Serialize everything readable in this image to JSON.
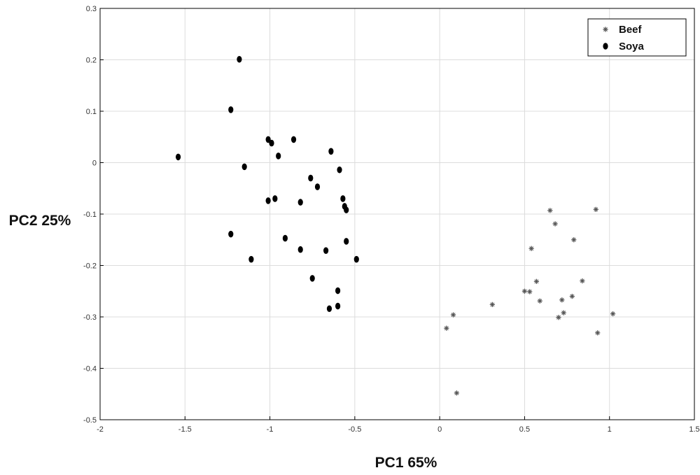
{
  "chart_data": {
    "type": "scatter",
    "title": "",
    "xlabel": "PC1 65%",
    "ylabel": "PC2 25%",
    "xlim": [
      -2,
      1.5
    ],
    "ylim": [
      -0.5,
      0.3
    ],
    "x_ticks": [
      -2,
      -1.5,
      -1,
      -0.5,
      0,
      0.5,
      1,
      1.5
    ],
    "x_tick_labels": [
      "-2",
      "-1.5",
      "-1",
      "-0.5",
      "0",
      "0.5",
      "1",
      "1.5"
    ],
    "y_ticks": [
      0.3,
      0.2,
      0.1,
      0,
      -0.1,
      -0.2,
      -0.3,
      -0.4,
      -0.5
    ],
    "y_tick_labels": [
      "0.3",
      "0.2",
      "0.1",
      "0",
      "-0.1",
      "-0.2",
      "-0.3",
      "-0.4",
      "-0.5"
    ],
    "grid": true,
    "legend_position": "top-right",
    "series": [
      {
        "name": "Beef",
        "marker": "asterisk",
        "color": "#555555",
        "points": [
          [
            0.04,
            -0.322
          ],
          [
            0.08,
            -0.296
          ],
          [
            0.1,
            -0.448
          ],
          [
            0.31,
            -0.276
          ],
          [
            0.5,
            -0.25
          ],
          [
            0.53,
            -0.251
          ],
          [
            0.54,
            -0.167
          ],
          [
            0.57,
            -0.231
          ],
          [
            0.59,
            -0.269
          ],
          [
            0.65,
            -0.093
          ],
          [
            0.68,
            -0.119
          ],
          [
            0.7,
            -0.301
          ],
          [
            0.72,
            -0.267
          ],
          [
            0.73,
            -0.292
          ],
          [
            0.78,
            -0.26
          ],
          [
            0.79,
            -0.15
          ],
          [
            0.84,
            -0.23
          ],
          [
            0.92,
            -0.091
          ],
          [
            0.93,
            -0.331
          ],
          [
            1.02,
            -0.294
          ]
        ]
      },
      {
        "name": "Soya",
        "marker": "filled-ellipse",
        "color": "#000000",
        "points": [
          [
            -1.54,
            0.011
          ],
          [
            -1.23,
            0.103
          ],
          [
            -1.18,
            0.201
          ],
          [
            -1.15,
            -0.008
          ],
          [
            -1.23,
            -0.139
          ],
          [
            -1.11,
            -0.188
          ],
          [
            -1.01,
            0.045
          ],
          [
            -0.99,
            0.038
          ],
          [
            -0.95,
            0.013
          ],
          [
            -0.86,
            0.045
          ],
          [
            -1.01,
            -0.074
          ],
          [
            -0.97,
            -0.07
          ],
          [
            -0.82,
            -0.077
          ],
          [
            -0.91,
            -0.147
          ],
          [
            -0.82,
            -0.169
          ],
          [
            -0.76,
            -0.03
          ],
          [
            -0.72,
            -0.047
          ],
          [
            -0.64,
            0.022
          ],
          [
            -0.59,
            -0.014
          ],
          [
            -0.57,
            -0.07
          ],
          [
            -0.56,
            -0.085
          ],
          [
            -0.55,
            -0.092
          ],
          [
            -0.55,
            -0.153
          ],
          [
            -0.67,
            -0.171
          ],
          [
            -0.75,
            -0.225
          ],
          [
            -0.49,
            -0.188
          ],
          [
            -0.6,
            -0.249
          ],
          [
            -0.6,
            -0.279
          ],
          [
            -0.65,
            -0.284
          ]
        ]
      }
    ]
  }
}
